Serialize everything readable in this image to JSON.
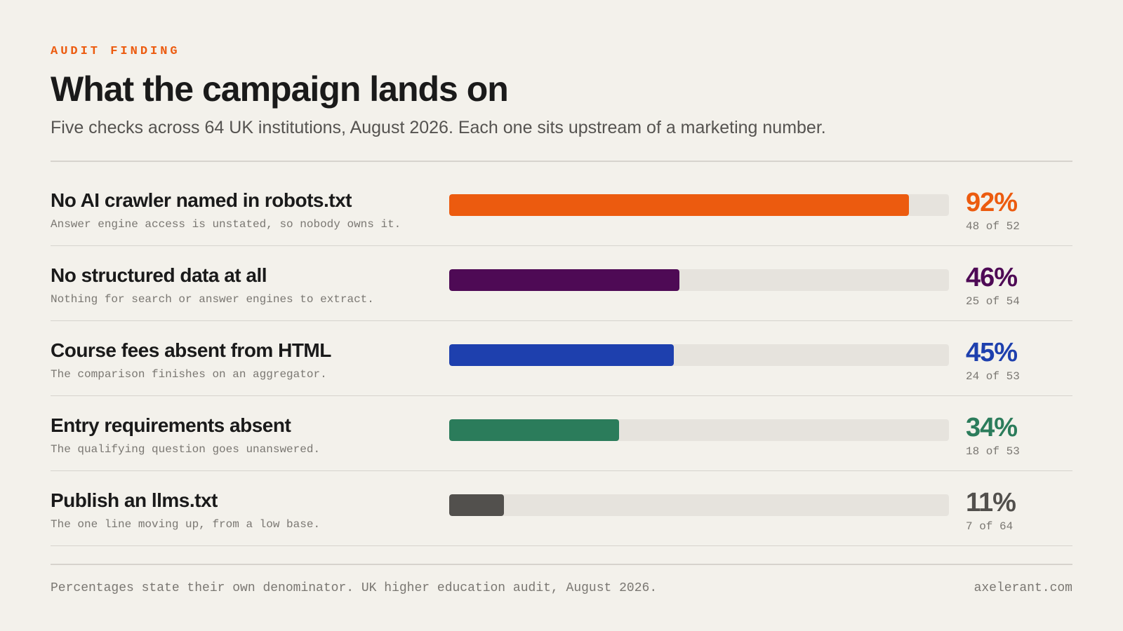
{
  "header": {
    "eyebrow": "AUDIT FINDING",
    "title": "What the campaign lands on",
    "subtitle": "Five checks across 64 UK institutions, August 2026. Each one sits upstream of a marketing number."
  },
  "chart_data": {
    "type": "bar",
    "orientation": "horizontal",
    "title": "What the campaign lands on",
    "subtitle": "Five checks across 64 UK institutions, August 2026. Each one sits upstream of a marketing number.",
    "xlim": [
      0,
      100
    ],
    "grid": false,
    "legend": "none",
    "rows": [
      {
        "label": "No AI crawler named in robots.txt",
        "note": "Answer engine access is unstated, so nobody owns it.",
        "value": 92,
        "value_label": "92%",
        "count": "48 of 52",
        "color": "#ec5b0f"
      },
      {
        "label": "No structured data at all",
        "note": "Nothing for search or answer engines to extract.",
        "value": 46,
        "value_label": "46%",
        "count": "25 of 54",
        "color": "#4e0a55"
      },
      {
        "label": "Course fees absent from HTML",
        "note": "The comparison finishes on an aggregator.",
        "value": 45,
        "value_label": "45%",
        "count": "24 of 53",
        "color": "#1e40ae"
      },
      {
        "label": "Entry requirements absent",
        "note": "The qualifying question goes unanswered.",
        "value": 34,
        "value_label": "34%",
        "count": "18 of 53",
        "color": "#2b7c5b"
      },
      {
        "label": "Publish an llms.txt",
        "note": "The one line moving up, from a low base.",
        "value": 11,
        "value_label": "11%",
        "count": "7 of 64",
        "color": "#52504d"
      }
    ]
  },
  "footer": {
    "note": "Percentages state their own denominator. UK higher education audit, August 2026.",
    "site": "axelerant.com"
  }
}
